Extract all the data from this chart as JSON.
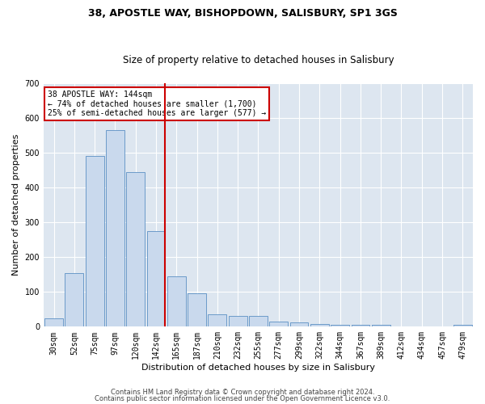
{
  "title1": "38, APOSTLE WAY, BISHOPDOWN, SALISBURY, SP1 3GS",
  "title2": "Size of property relative to detached houses in Salisbury",
  "xlabel": "Distribution of detached houses by size in Salisbury",
  "ylabel": "Number of detached properties",
  "categories": [
    "30sqm",
    "52sqm",
    "75sqm",
    "97sqm",
    "120sqm",
    "142sqm",
    "165sqm",
    "187sqm",
    "210sqm",
    "232sqm",
    "255sqm",
    "277sqm",
    "299sqm",
    "322sqm",
    "344sqm",
    "367sqm",
    "389sqm",
    "412sqm",
    "434sqm",
    "457sqm",
    "479sqm"
  ],
  "values": [
    25,
    155,
    490,
    565,
    445,
    275,
    145,
    97,
    35,
    32,
    32,
    15,
    12,
    8,
    5,
    5,
    5,
    0,
    0,
    0,
    5
  ],
  "bar_color": "#c9d9ed",
  "bar_edge_color": "#5b8fc4",
  "vline_index": 5,
  "vline_color": "#cc0000",
  "annotation_text": "38 APOSTLE WAY: 144sqm\n← 74% of detached houses are smaller (1,700)\n25% of semi-detached houses are larger (577) →",
  "annotation_box_color": "#ffffff",
  "annotation_box_edge": "#cc0000",
  "fig_bg_color": "#ffffff",
  "ax_bg_color": "#dde6f0",
  "grid_color": "#ffffff",
  "ylim": [
    0,
    700
  ],
  "yticks": [
    0,
    100,
    200,
    300,
    400,
    500,
    600,
    700
  ],
  "title1_fontsize": 9,
  "title2_fontsize": 8.5,
  "xlabel_fontsize": 8,
  "ylabel_fontsize": 8,
  "tick_fontsize": 7,
  "footer1": "Contains HM Land Registry data © Crown copyright and database right 2024.",
  "footer2": "Contains public sector information licensed under the Open Government Licence v3.0.",
  "footer_fontsize": 6
}
